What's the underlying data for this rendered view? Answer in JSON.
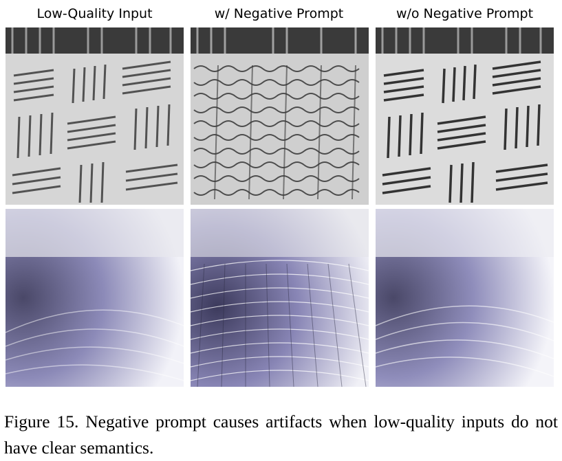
{
  "figure": {
    "columns": [
      {
        "title": "Low-Quality Input"
      },
      {
        "title": "w/ Negative Prompt"
      },
      {
        "title": "w/o Negative Prompt"
      }
    ],
    "caption": "Figure 15. Negative prompt causes artifacts when low-quality inputs do not have clear semantics."
  }
}
